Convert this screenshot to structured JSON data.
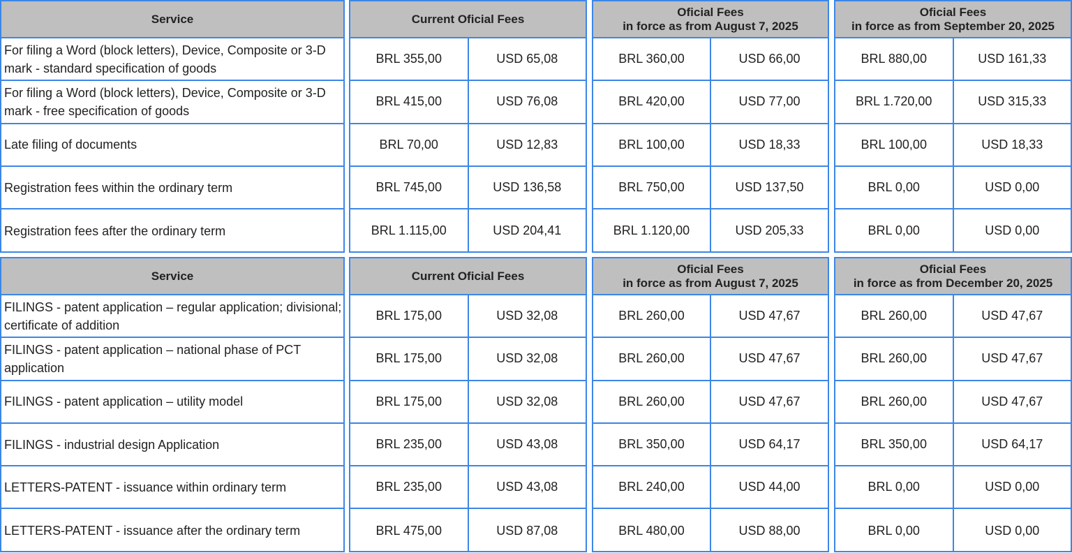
{
  "tables": [
    {
      "headers": {
        "service": "Service",
        "current": [
          "Current Oficial Fees"
        ],
        "aug": [
          "Oficial Fees",
          "in force as from August 7, 2025"
        ],
        "later": [
          "Oficial Fees",
          "in force as from September 20, 2025"
        ]
      },
      "rows": [
        {
          "service": "For filing a Word (block letters), Device, Composite or 3-D mark - standard specification of goods",
          "values": [
            "BRL 355,00",
            "USD 65,08",
            "BRL 360,00",
            "USD 66,00",
            "BRL 880,00",
            "USD 161,33"
          ]
        },
        {
          "service": "For filing a Word (block letters), Device, Composite or 3-D mark - free specification of goods",
          "values": [
            "BRL 415,00",
            "USD 76,08",
            "BRL 420,00",
            "USD 77,00",
            "BRL 1.720,00",
            "USD 315,33"
          ]
        },
        {
          "service": "Late filing of documents",
          "values": [
            "BRL 70,00",
            "USD 12,83",
            "BRL 100,00",
            "USD 18,33",
            "BRL 100,00",
            "USD 18,33"
          ]
        },
        {
          "service": "Registration fees within the ordinary term",
          "values": [
            "BRL 745,00",
            "USD 136,58",
            "BRL 750,00",
            "USD 137,50",
            "BRL 0,00",
            "USD 0,00"
          ]
        },
        {
          "service": "Registration fees after the ordinary term",
          "values": [
            "BRL 1.115,00",
            "USD 204,41",
            "BRL 1.120,00",
            "USD 205,33",
            "BRL 0,00",
            "USD 0,00"
          ]
        }
      ]
    },
    {
      "headers": {
        "service": "Service",
        "current": [
          "Current Oficial Fees"
        ],
        "aug": [
          "Oficial Fees",
          "in force as from August 7, 2025"
        ],
        "later": [
          "Oficial Fees",
          "in force as from December 20, 2025"
        ]
      },
      "rows": [
        {
          "service": "FILINGS - patent application – regular application; divisional; certificate of addition",
          "values": [
            "BRL 175,00",
            "USD 32,08",
            "BRL 260,00",
            "USD 47,67",
            "BRL 260,00",
            "USD 47,67"
          ]
        },
        {
          "service": "FILINGS - patent application – national phase of PCT application",
          "values": [
            "BRL 175,00",
            "USD 32,08",
            "BRL 260,00",
            "USD 47,67",
            "BRL 260,00",
            "USD 47,67"
          ]
        },
        {
          "service": "FILINGS - patent application – utility model",
          "values": [
            "BRL 175,00",
            "USD 32,08",
            "BRL 260,00",
            "USD 47,67",
            "BRL 260,00",
            "USD 47,67"
          ]
        },
        {
          "service": "FILINGS - industrial design Application",
          "values": [
            "BRL 235,00",
            "USD 43,08",
            "BRL 350,00",
            "USD 64,17",
            "BRL 350,00",
            "USD 64,17"
          ]
        },
        {
          "service": "LETTERS-PATENT - issuance within ordinary term",
          "values": [
            "BRL 235,00",
            "USD 43,08",
            "BRL 240,00",
            "USD 44,00",
            "BRL 0,00",
            "USD 0,00"
          ]
        },
        {
          "service": "LETTERS-PATENT - issuance after the ordinary term",
          "values": [
            "BRL 475,00",
            "USD 87,08",
            "BRL 480,00",
            "USD 88,00",
            "BRL 0,00",
            "USD 0,00"
          ]
        }
      ]
    }
  ]
}
